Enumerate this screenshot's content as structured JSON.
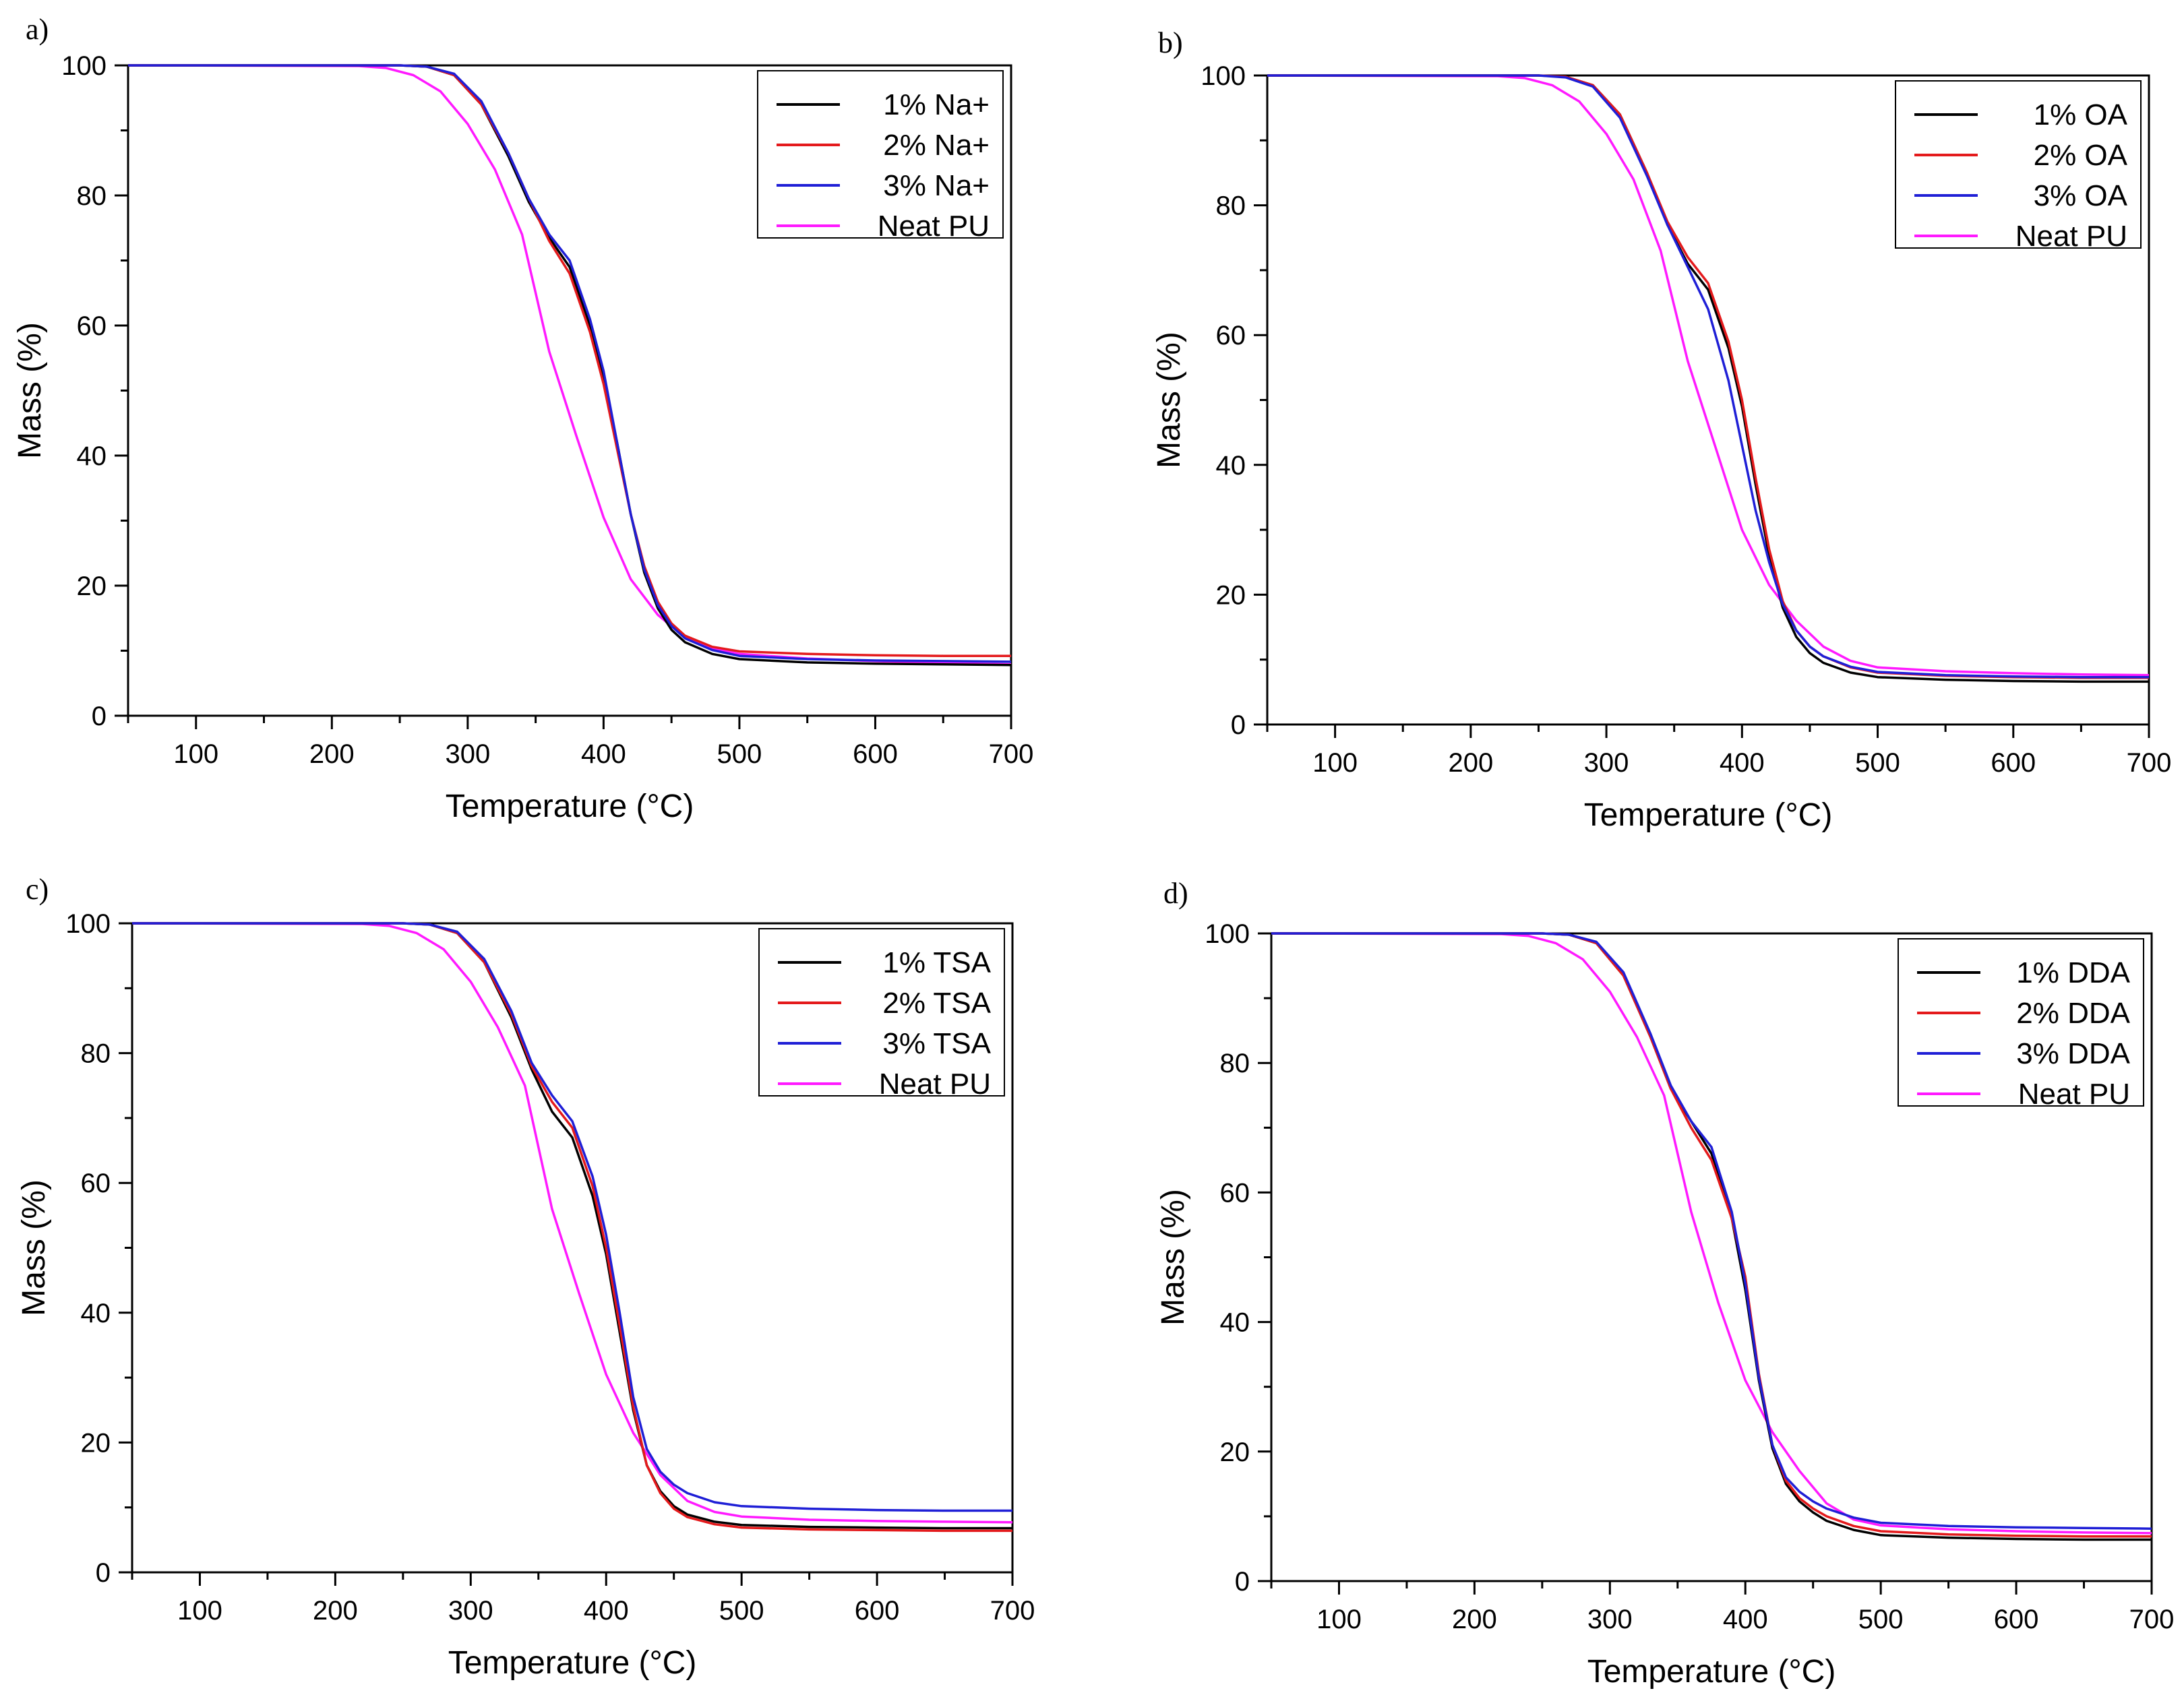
{
  "figure": {
    "background": "#ffffff",
    "axis_color": "#000000"
  },
  "chart_data": [
    {
      "panel": "a)",
      "type": "line",
      "xlabel": "Temperature (°C)",
      "ylabel": "Mass (%)",
      "xlim": [
        50,
        700
      ],
      "ylim": [
        0,
        100
      ],
      "xticks": [
        100,
        200,
        300,
        400,
        500,
        600,
        700
      ],
      "yticks": [
        0,
        20,
        40,
        60,
        80,
        100
      ],
      "legend_position": "top-right",
      "series": [
        {
          "name": "1% Na+",
          "color": "#000000",
          "x": [
            50,
            250,
            270,
            290,
            310,
            330,
            345,
            360,
            375,
            390,
            400,
            410,
            420,
            430,
            440,
            450,
            460,
            480,
            500,
            550,
            600,
            650,
            700
          ],
          "y": [
            100,
            100,
            99.8,
            98.5,
            94,
            86,
            79,
            73.5,
            69,
            60,
            52,
            42,
            31,
            22,
            16.5,
            13.2,
            11.3,
            9.5,
            8.7,
            8.2,
            8.0,
            7.9,
            7.8
          ]
        },
        {
          "name": "2% Na+",
          "color": "#e41a1c",
          "x": [
            50,
            250,
            270,
            290,
            310,
            330,
            345,
            360,
            375,
            390,
            400,
            410,
            420,
            430,
            440,
            450,
            460,
            480,
            500,
            550,
            600,
            650,
            700
          ],
          "y": [
            100,
            100,
            99.8,
            98.5,
            94,
            86.5,
            79.5,
            73,
            68,
            59,
            51,
            41,
            31,
            23,
            17.5,
            14.2,
            12.3,
            10.6,
            9.9,
            9.5,
            9.3,
            9.2,
            9.2
          ]
        },
        {
          "name": "3% Na+",
          "color": "#1f1fd6",
          "x": [
            50,
            250,
            270,
            290,
            310,
            330,
            345,
            360,
            375,
            390,
            400,
            410,
            420,
            430,
            440,
            450,
            460,
            480,
            500,
            550,
            600,
            650,
            700
          ],
          "y": [
            100,
            100,
            99.8,
            98.7,
            94.5,
            86.5,
            79.5,
            74,
            70,
            61,
            53,
            42,
            31,
            22.5,
            17,
            13.8,
            11.9,
            10.1,
            9.2,
            8.7,
            8.5,
            8.4,
            8.3
          ]
        },
        {
          "name": "Neat PU",
          "color": "#ff1aff",
          "x": [
            50,
            220,
            240,
            260,
            280,
            300,
            320,
            340,
            360,
            380,
            400,
            420,
            440,
            460,
            480,
            500,
            550,
            600,
            650,
            700
          ],
          "y": [
            100,
            99.9,
            99.6,
            98.5,
            96,
            91,
            84,
            74,
            56,
            43,
            30.5,
            21,
            15.5,
            12,
            10.3,
            9.5,
            8.8,
            8.4,
            8.1,
            7.9
          ]
        }
      ]
    },
    {
      "panel": "b)",
      "type": "line",
      "xlabel": "Temperature (°C)",
      "ylabel": "Mass (%)",
      "xlim": [
        50,
        700
      ],
      "ylim": [
        0,
        100
      ],
      "xticks": [
        100,
        200,
        300,
        400,
        500,
        600,
        700
      ],
      "yticks": [
        0,
        20,
        40,
        60,
        80,
        100
      ],
      "legend_position": "top-right",
      "series": [
        {
          "name": "1% OA",
          "color": "#000000",
          "x": [
            50,
            250,
            270,
            290,
            310,
            330,
            345,
            360,
            375,
            390,
            400,
            410,
            420,
            430,
            440,
            450,
            460,
            480,
            500,
            550,
            600,
            650,
            700
          ],
          "y": [
            100,
            100,
            99.8,
            98.5,
            94,
            85,
            77,
            71,
            67,
            58,
            49,
            37,
            26,
            18,
            13.5,
            11,
            9.5,
            8,
            7.3,
            6.9,
            6.7,
            6.6,
            6.6
          ]
        },
        {
          "name": "2% OA",
          "color": "#e41a1c",
          "x": [
            50,
            250,
            270,
            290,
            310,
            330,
            345,
            360,
            375,
            390,
            400,
            410,
            420,
            430,
            440,
            450,
            460,
            480,
            500,
            550,
            600,
            650,
            700
          ],
          "y": [
            100,
            100,
            99.8,
            98.5,
            94,
            85,
            77.5,
            72,
            68,
            59,
            50,
            38,
            27,
            19,
            14.5,
            12,
            10.5,
            8.8,
            8,
            7.5,
            7.3,
            7.2,
            7.2
          ]
        },
        {
          "name": "3% OA",
          "color": "#1f1fd6",
          "x": [
            50,
            250,
            270,
            290,
            310,
            330,
            345,
            360,
            375,
            390,
            400,
            410,
            420,
            430,
            440,
            450,
            460,
            480,
            500,
            550,
            600,
            650,
            700
          ],
          "y": [
            100,
            100,
            99.7,
            98.3,
            93.5,
            84.5,
            77,
            70.5,
            64,
            53,
            43,
            33,
            25,
            18.5,
            14.5,
            12,
            10.5,
            8.9,
            8.1,
            7.6,
            7.4,
            7.3,
            7.3
          ]
        },
        {
          "name": "Neat PU",
          "color": "#ff1aff",
          "x": [
            50,
            220,
            240,
            260,
            280,
            300,
            320,
            340,
            360,
            380,
            400,
            420,
            440,
            460,
            480,
            500,
            550,
            600,
            650,
            700
          ],
          "y": [
            100,
            99.9,
            99.6,
            98.5,
            96,
            91,
            84,
            73,
            56,
            43,
            30,
            21.5,
            16,
            12,
            9.8,
            8.8,
            8.2,
            7.9,
            7.7,
            7.6
          ]
        }
      ]
    },
    {
      "panel": "c)",
      "type": "line",
      "xlabel": "Temperature (°C)",
      "ylabel": "Mass (%)",
      "xlim": [
        50,
        700
      ],
      "ylim": [
        0,
        100
      ],
      "xticks": [
        100,
        200,
        300,
        400,
        500,
        600,
        700
      ],
      "yticks": [
        0,
        20,
        40,
        60,
        80,
        100
      ],
      "legend_position": "top-right",
      "series": [
        {
          "name": "1% TSA",
          "color": "#000000",
          "x": [
            50,
            250,
            270,
            290,
            310,
            330,
            345,
            360,
            375,
            390,
            400,
            410,
            420,
            430,
            440,
            450,
            460,
            480,
            500,
            550,
            600,
            650,
            700
          ],
          "y": [
            100,
            100,
            99.8,
            98.5,
            94,
            85.5,
            77.5,
            71,
            67,
            58,
            49,
            37,
            25,
            16.5,
            12.5,
            10.2,
            8.9,
            7.8,
            7.3,
            7.0,
            6.9,
            6.8,
            6.8
          ]
        },
        {
          "name": "2% TSA",
          "color": "#e41a1c",
          "x": [
            50,
            250,
            270,
            290,
            310,
            330,
            345,
            360,
            375,
            390,
            400,
            410,
            420,
            430,
            440,
            450,
            460,
            480,
            500,
            550,
            600,
            650,
            700
          ],
          "y": [
            100,
            100,
            99.8,
            98.5,
            94,
            86,
            78,
            72.5,
            68.5,
            59.5,
            50,
            38,
            25.5,
            16.5,
            12.2,
            9.8,
            8.5,
            7.4,
            6.9,
            6.6,
            6.5,
            6.4,
            6.4
          ]
        },
        {
          "name": "3% TSA",
          "color": "#1f1fd6",
          "x": [
            50,
            250,
            270,
            290,
            310,
            330,
            345,
            360,
            375,
            390,
            400,
            410,
            420,
            430,
            440,
            450,
            460,
            480,
            500,
            550,
            600,
            650,
            700
          ],
          "y": [
            100,
            100,
            99.8,
            98.7,
            94.5,
            86.5,
            78.5,
            73.5,
            69.5,
            61,
            52,
            40,
            27,
            19,
            15.5,
            13.5,
            12.2,
            10.8,
            10.2,
            9.8,
            9.6,
            9.5,
            9.5
          ]
        },
        {
          "name": "Neat PU",
          "color": "#ff1aff",
          "x": [
            50,
            220,
            240,
            260,
            280,
            300,
            320,
            340,
            360,
            380,
            400,
            420,
            440,
            460,
            480,
            500,
            550,
            600,
            650,
            700
          ],
          "y": [
            100,
            99.9,
            99.6,
            98.5,
            96,
            91,
            84,
            75,
            56,
            43,
            30.5,
            21.5,
            15,
            11,
            9.3,
            8.6,
            8.1,
            7.9,
            7.8,
            7.7
          ]
        }
      ]
    },
    {
      "panel": "d)",
      "type": "line",
      "xlabel": "Temperature (°C)",
      "ylabel": "Mass (%)",
      "xlim": [
        50,
        700
      ],
      "ylim": [
        0,
        100
      ],
      "xticks": [
        100,
        200,
        300,
        400,
        500,
        600,
        700
      ],
      "yticks": [
        0,
        20,
        40,
        60,
        80,
        100
      ],
      "legend_position": "top-right",
      "series": [
        {
          "name": "1% DDA",
          "color": "#000000",
          "x": [
            50,
            250,
            270,
            290,
            310,
            330,
            345,
            360,
            375,
            390,
            400,
            410,
            420,
            430,
            440,
            450,
            460,
            480,
            500,
            550,
            600,
            650,
            700
          ],
          "y": [
            100,
            100,
            99.8,
            98.5,
            93.5,
            84,
            76,
            71,
            66,
            56,
            45,
            31,
            20.5,
            15,
            12.3,
            10.6,
            9.3,
            7.9,
            7.1,
            6.7,
            6.5,
            6.4,
            6.4
          ]
        },
        {
          "name": "2% DDA",
          "color": "#e41a1c",
          "x": [
            50,
            250,
            270,
            290,
            310,
            330,
            345,
            360,
            375,
            390,
            400,
            410,
            420,
            430,
            440,
            450,
            460,
            480,
            500,
            550,
            600,
            650,
            700
          ],
          "y": [
            100,
            100,
            99.8,
            98.5,
            93.5,
            84,
            76,
            70,
            65,
            56,
            47,
            32,
            21,
            15.5,
            12.8,
            11.2,
            10,
            8.5,
            7.7,
            7.2,
            7.0,
            6.9,
            6.9
          ]
        },
        {
          "name": "3% DDA",
          "color": "#1f1fd6",
          "x": [
            50,
            250,
            270,
            290,
            310,
            330,
            345,
            360,
            375,
            390,
            400,
            410,
            420,
            430,
            440,
            450,
            460,
            480,
            500,
            550,
            600,
            650,
            700
          ],
          "y": [
            100,
            100,
            99.8,
            98.7,
            94,
            84.5,
            76.5,
            71,
            67,
            57,
            46,
            31.5,
            21,
            16,
            13.8,
            12.3,
            11.2,
            9.8,
            9,
            8.5,
            8.3,
            8.2,
            8.1
          ]
        },
        {
          "name": "Neat PU",
          "color": "#ff1aff",
          "x": [
            50,
            220,
            240,
            260,
            280,
            300,
            320,
            340,
            360,
            380,
            400,
            420,
            440,
            460,
            480,
            500,
            550,
            600,
            650,
            700
          ],
          "y": [
            100,
            99.9,
            99.6,
            98.5,
            96,
            91,
            84,
            75,
            57,
            43,
            31,
            23,
            17,
            12,
            9.5,
            8.6,
            8.0,
            7.7,
            7.5,
            7.4
          ]
        }
      ]
    }
  ]
}
